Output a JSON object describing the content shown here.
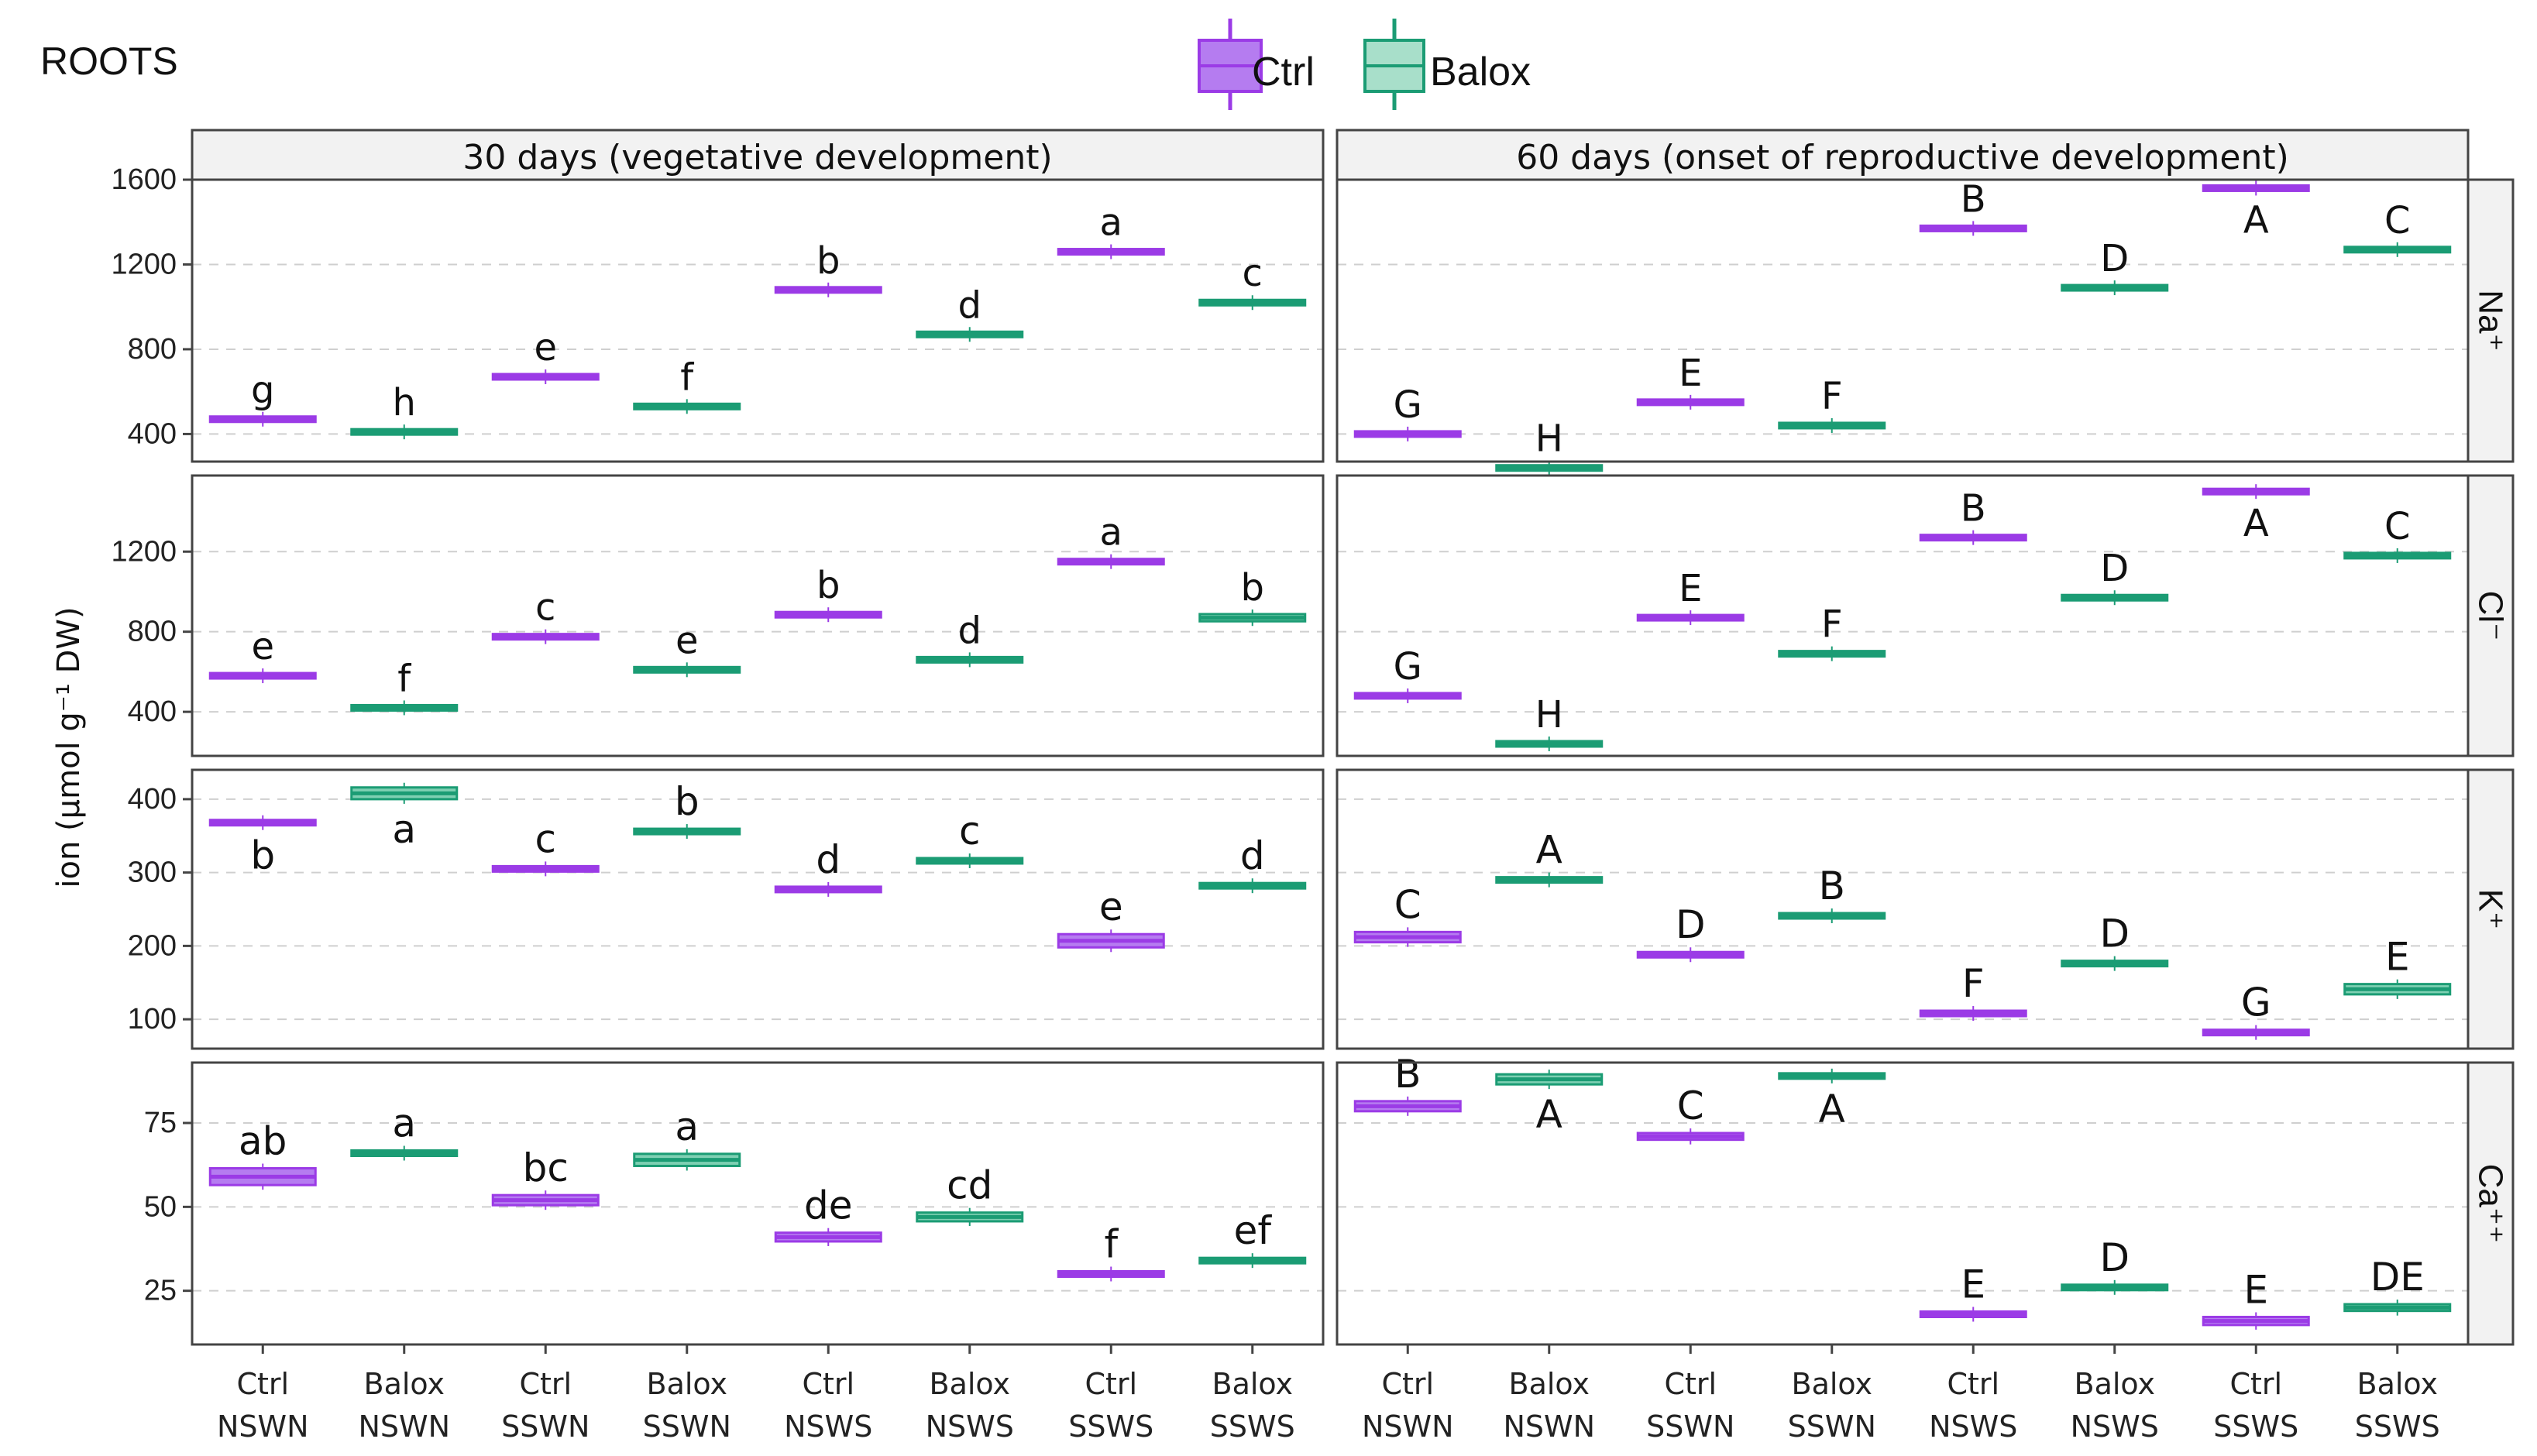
{
  "figure_label": "ROOTS",
  "legend": [
    {
      "label": "Ctrl",
      "color": "#9b3be6",
      "fill": "#b57cf0"
    },
    {
      "label": "Balox",
      "color": "#1b9c74",
      "fill": "#7fd0b3"
    }
  ],
  "y_axis_label": "ion (µmol g⁻¹ DW)",
  "columns": [
    "30 days (vegetative development)",
    "60 days (onset of reproductive development)"
  ],
  "rows": [
    "Na⁺",
    "Cl⁻",
    "K⁺",
    "Ca⁺⁺"
  ],
  "categories": [
    {
      "treatment": "Ctrl",
      "line": "NSWN"
    },
    {
      "treatment": "Balox",
      "line": "NSWN"
    },
    {
      "treatment": "Ctrl",
      "line": "SSWN"
    },
    {
      "treatment": "Balox",
      "line": "SSWN"
    },
    {
      "treatment": "Ctrl",
      "line": "NSWS"
    },
    {
      "treatment": "Balox",
      "line": "NSWS"
    },
    {
      "treatment": "Ctrl",
      "line": "SSWS"
    },
    {
      "treatment": "Balox",
      "line": "SSWS"
    }
  ],
  "chart_data": {
    "type": "box",
    "title": "ROOTS",
    "ylabel": "ion (µmol g⁻¹ DW)",
    "facets": [
      {
        "row": "Na⁺",
        "column": "30 days (vegetative development)",
        "ylim": [
          270,
          1600
        ],
        "yticks": [
          400,
          800,
          1200,
          1600
        ],
        "values": [
          470,
          410,
          670,
          530,
          1080,
          870,
          1260,
          1020
        ],
        "spread": [
          8,
          8,
          8,
          8,
          8,
          8,
          8,
          8
        ],
        "letters": [
          "g",
          "h",
          "e",
          "f",
          "b",
          "d",
          "a",
          "c"
        ],
        "letter_pos": [
          "above",
          "above",
          "above",
          "above",
          "above",
          "above",
          "above",
          "above"
        ]
      },
      {
        "row": "Na⁺",
        "column": "60 days (onset of reproductive development)",
        "ylim": [
          270,
          1600
        ],
        "yticks": [
          400,
          800,
          1200,
          1600
        ],
        "values": [
          400,
          240,
          550,
          440,
          1370,
          1090,
          1560,
          1270
        ],
        "spread": [
          8,
          8,
          8,
          8,
          8,
          8,
          8,
          8
        ],
        "letters": [
          "G",
          "H",
          "E",
          "F",
          "B",
          "D",
          "A",
          "C"
        ],
        "letter_pos": [
          "above",
          "above",
          "above",
          "above",
          "above",
          "above",
          "below",
          "above"
        ]
      },
      {
        "row": "Cl⁻",
        "column": "30 days (vegetative development)",
        "ylim": [
          180,
          1580
        ],
        "yticks": [
          400,
          800,
          1200
        ],
        "values": [
          580,
          420,
          775,
          610,
          885,
          660,
          1150,
          870
        ],
        "spread": [
          8,
          8,
          12,
          8,
          8,
          8,
          8,
          18
        ],
        "letters": [
          "e",
          "f",
          "c",
          "e",
          "b",
          "d",
          "a",
          "b"
        ],
        "letter_pos": [
          "above",
          "above",
          "above",
          "above",
          "above",
          "above",
          "above",
          "above"
        ]
      },
      {
        "row": "Cl⁻",
        "column": "60 days (onset of reproductive development)",
        "ylim": [
          180,
          1580
        ],
        "yticks": [
          400,
          800,
          1200
        ],
        "values": [
          480,
          240,
          870,
          690,
          1270,
          970,
          1500,
          1180
        ],
        "spread": [
          8,
          8,
          8,
          8,
          12,
          8,
          8,
          8
        ],
        "letters": [
          "G",
          "H",
          "E",
          "F",
          "B",
          "D",
          "A",
          "C"
        ],
        "letter_pos": [
          "above",
          "above",
          "above",
          "above",
          "above",
          "above",
          "below",
          "above"
        ]
      },
      {
        "row": "K⁺",
        "column": "30 days (vegetative development)",
        "ylim": [
          60,
          440
        ],
        "yticks": [
          100,
          200,
          300,
          400
        ],
        "values": [
          368,
          408,
          305,
          356,
          277,
          316,
          207,
          282
        ],
        "spread": [
          2,
          8,
          2,
          2,
          2,
          2,
          9,
          2
        ],
        "letters": [
          "b",
          "a",
          "c",
          "b",
          "d",
          "c",
          "e",
          "d"
        ],
        "letter_pos": [
          "below",
          "below",
          "above",
          "above",
          "above",
          "above",
          "above",
          "above"
        ]
      },
      {
        "row": "K⁺",
        "column": "60 days (onset of reproductive development)",
        "ylim": [
          60,
          440
        ],
        "yticks": [
          100,
          200,
          300,
          400
        ],
        "values": [
          212,
          290,
          188,
          241,
          108,
          176,
          82,
          141
        ],
        "spread": [
          7,
          3,
          2,
          2,
          2,
          2,
          2,
          7
        ],
        "letters": [
          "C",
          "A",
          "D",
          "B",
          "F",
          "D",
          "G",
          "E"
        ],
        "letter_pos": [
          "above",
          "above",
          "above",
          "above",
          "above",
          "above",
          "above",
          "above"
        ]
      },
      {
        "row": "Ca⁺⁺",
        "column": "30 days (vegetative development)",
        "ylim": [
          9,
          93
        ],
        "yticks": [
          25,
          50,
          75
        ],
        "values": [
          59,
          66,
          52,
          64,
          41,
          47,
          30,
          34
        ],
        "spread": [
          2.5,
          0.8,
          1.5,
          1.8,
          1.3,
          1.3,
          0.5,
          0.5
        ],
        "letters": [
          "ab",
          "a",
          "bc",
          "a",
          "de",
          "cd",
          "f",
          "ef"
        ],
        "letter_pos": [
          "above",
          "above",
          "above",
          "above",
          "above",
          "above",
          "above",
          "above"
        ]
      },
      {
        "row": "Ca⁺⁺",
        "column": "60 days (onset of reproductive development)",
        "ylim": [
          9,
          93
        ],
        "yticks": [
          25,
          50,
          75
        ],
        "values": [
          80,
          88,
          71,
          89,
          18,
          26,
          16,
          20
        ],
        "spread": [
          1.5,
          1.5,
          1,
          0.6,
          0.7,
          0.6,
          1.2,
          1
        ],
        "letters": [
          "B",
          "A",
          "C",
          "A",
          "E",
          "D",
          "E",
          "DE"
        ],
        "letter_pos": [
          "above",
          "below",
          "above",
          "below",
          "above",
          "above",
          "above",
          "above"
        ]
      }
    ]
  }
}
